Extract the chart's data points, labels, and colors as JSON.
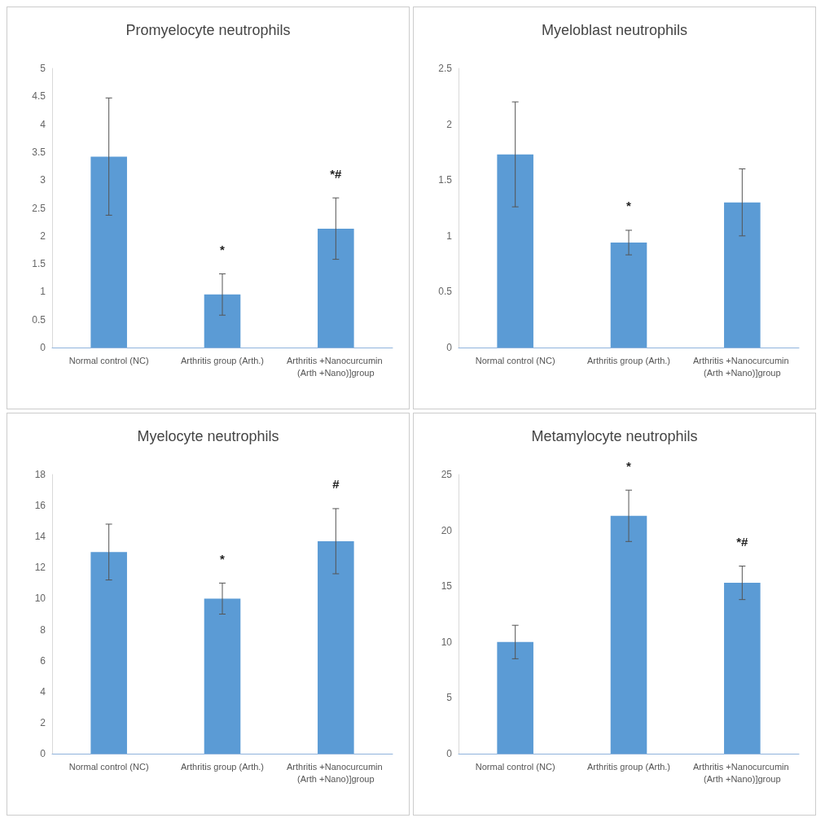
{
  "chart_data": [
    {
      "type": "bar",
      "title": "Promyelocyte neutrophils",
      "categories": [
        "Normal control (NC)",
        "Arthritis group (Arth.)",
        "Arthritis +Nanocurcumin (Arth +Nano)]group"
      ],
      "values": [
        3.42,
        0.95,
        2.13
      ],
      "errors": [
        1.05,
        0.37,
        0.55
      ],
      "color": "#5b9bd5",
      "ylim": [
        0,
        5
      ],
      "yticks": [
        0,
        0.5,
        1,
        1.5,
        2,
        2.5,
        3,
        3.5,
        4,
        4.5,
        5
      ],
      "grid": false,
      "annotations": [
        "*",
        "*#"
      ]
    },
    {
      "type": "bar",
      "title": "Myeloblast neutrophils",
      "categories": [
        "Normal control (NC)",
        "Arthritis group (Arth.)",
        "Arthritis +Nanocurcumin (Arth +Nano)]group"
      ],
      "values": [
        1.73,
        0.94,
        1.3
      ],
      "errors": [
        0.47,
        0.11,
        0.3
      ],
      "color": "#5b9bd5",
      "ylim": [
        0,
        2.5
      ],
      "yticks": [
        0,
        0.5,
        1,
        1.5,
        2,
        2.5
      ],
      "grid": false,
      "annotations": [
        "*"
      ]
    },
    {
      "type": "bar",
      "title": "Myelocyte neutrophils",
      "categories": [
        "Normal control (NC)",
        "Arthritis group (Arth.)",
        "Arthritis +Nanocurcumin (Arth +Nano)]group"
      ],
      "values": [
        13,
        10,
        13.7
      ],
      "errors": [
        1.8,
        1,
        2.1
      ],
      "color": "#5b9bd5",
      "ylim": [
        0,
        18
      ],
      "yticks": [
        0,
        2,
        4,
        6,
        8,
        10,
        12,
        14,
        16,
        18
      ],
      "grid": false,
      "annotations": [
        "*",
        "#"
      ]
    },
    {
      "type": "bar",
      "title": "Metamylocyte neutrophils",
      "categories": [
        "Normal control (NC)",
        "Arthritis group (Arth.)",
        "Arthritis +Nanocurcumin (Arth +Nano)]group"
      ],
      "values": [
        10,
        21.3,
        15.3
      ],
      "errors": [
        1.5,
        2.3,
        1.5
      ],
      "color": "#5b9bd5",
      "ylim": [
        0,
        25
      ],
      "yticks": [
        0,
        5,
        10,
        15,
        20,
        25
      ],
      "grid": false,
      "annotations": [
        "*",
        "*#"
      ]
    }
  ]
}
